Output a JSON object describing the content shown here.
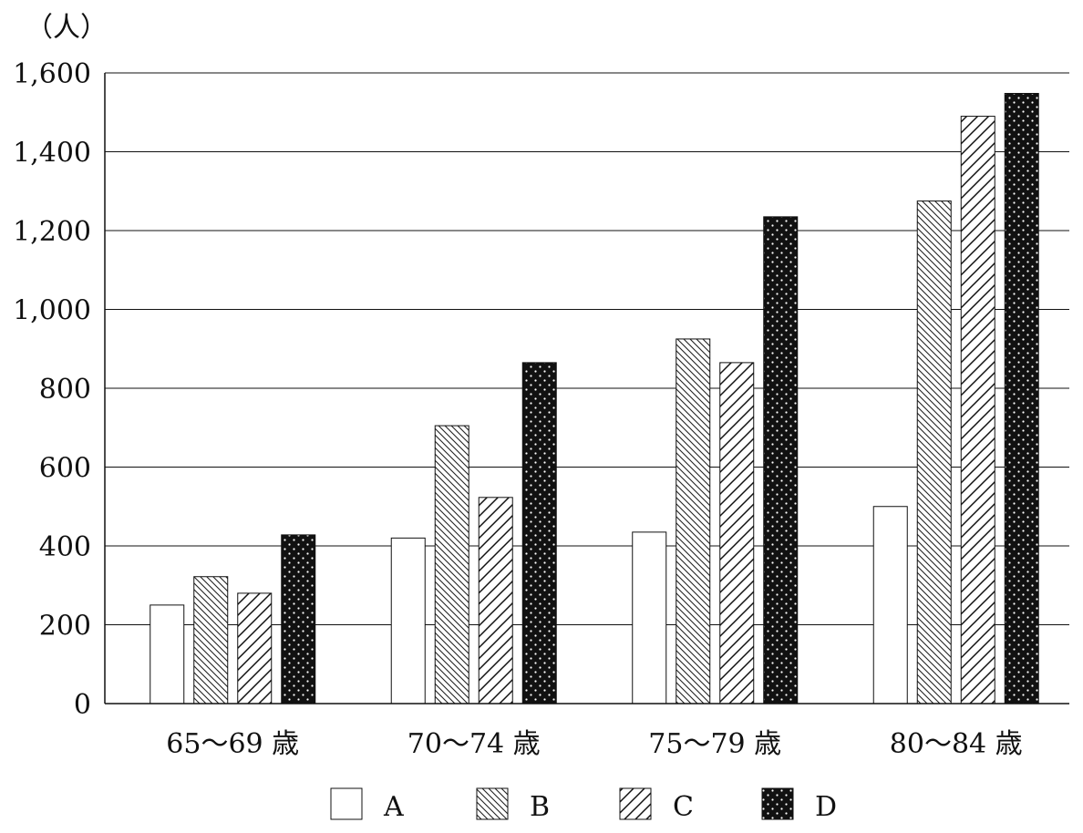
{
  "chart_data": {
    "type": "bar",
    "ylabel": "（人）",
    "ylim": [
      0,
      1600
    ],
    "yticks": [
      0,
      200,
      400,
      600,
      800,
      1000,
      1200,
      1400,
      1600
    ],
    "ytick_labels": [
      "0",
      "200",
      "400",
      "600",
      "800",
      "1,000",
      "1,200",
      "1,400",
      "1,600"
    ],
    "categories": [
      "65～69 歳",
      "70～74 歳",
      "75～79 歳",
      "80～84 歳"
    ],
    "series": [
      {
        "name": "A",
        "values": [
          250,
          420,
          435,
          500
        ],
        "pattern": "plain",
        "color": "#ffffff"
      },
      {
        "name": "B",
        "values": [
          322,
          705,
          925,
          1275
        ],
        "pattern": "backslash",
        "color": "#ffffff"
      },
      {
        "name": "C",
        "values": [
          280,
          523,
          865,
          1490
        ],
        "pattern": "slash",
        "color": "#ffffff"
      },
      {
        "name": "D",
        "values": [
          428,
          865,
          1235,
          1548
        ],
        "pattern": "dots",
        "color": "#111111"
      }
    ],
    "grid": "horizontal",
    "legend_position": "bottom"
  }
}
